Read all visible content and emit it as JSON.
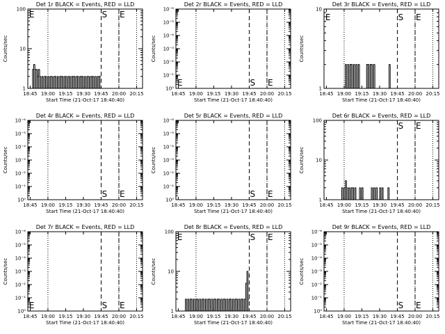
{
  "chart_data": [
    {
      "type": "line",
      "title": "Det 1r BLACK = Events, RED = LLD",
      "xlabel": "Start Time (21-Oct-17 18:40:40)",
      "ylabel": "Counts/sec",
      "ylim_label": [
        "1",
        "10",
        "100"
      ],
      "yscale": "log",
      "ylim": [
        1,
        100
      ],
      "xticks": [
        "18:45",
        "19:00",
        "19:15",
        "19:30",
        "19:45",
        "20:00",
        "20:15"
      ],
      "xlim_min": [
        -2,
        95
      ],
      "xticks_min": [
        0,
        15,
        30,
        45,
        60,
        75,
        90
      ],
      "dotted_min": [
        15,
        75,
        90
      ],
      "dashed_min": [
        60,
        75
      ],
      "markers": [
        {
          "text": "E",
          "x_min": -1.5,
          "y": 75
        },
        {
          "text": "S",
          "x_min": 60,
          "y": 75
        },
        {
          "text": "E",
          "x_min": 75,
          "y": 75
        }
      ],
      "series": [
        {
          "x_min": [
            2,
            3,
            4,
            5,
            6,
            7,
            8,
            9,
            10,
            11,
            12,
            13,
            14,
            15,
            16,
            17,
            18,
            19,
            20,
            21,
            22,
            23,
            24,
            25,
            26,
            27,
            28,
            29,
            30,
            31,
            32,
            33,
            34,
            35,
            36,
            37,
            38,
            39,
            40,
            41,
            42,
            43,
            44,
            45,
            46,
            47,
            48,
            49,
            50,
            51,
            52,
            53,
            54,
            55,
            56,
            57,
            58,
            59
          ],
          "values": [
            3,
            4,
            3,
            3,
            2,
            3,
            2,
            1,
            2,
            1,
            2,
            2,
            1,
            2,
            1,
            2,
            2,
            1,
            2,
            2,
            1,
            2,
            1,
            2,
            2,
            2,
            1,
            2,
            2,
            1,
            2,
            2,
            1,
            2,
            2,
            2,
            1,
            2,
            2,
            1,
            2,
            2,
            2,
            1,
            2,
            1,
            2,
            2,
            1,
            2,
            2,
            2,
            1,
            2,
            1,
            2,
            2,
            2
          ]
        }
      ]
    },
    {
      "type": "line",
      "title": "Det 2r BLACK = Events, RED = LLD",
      "xlabel": "Start Time (21-Oct-17 18:40:40)",
      "ylabel": "Counts/sec",
      "ylim_label": [
        "10⁰",
        "10⁻¹",
        "10⁻²",
        "10⁻³",
        "10⁻⁴",
        "10⁻⁵",
        "10⁻⁶"
      ],
      "yscale": "log",
      "ylim": [
        1,
        1000000
      ],
      "xticks": [
        "18:45",
        "19:00",
        "19:15",
        "19:30",
        "19:45",
        "20:00",
        "20:15"
      ],
      "xlim_min": [
        -2,
        95
      ],
      "xticks_min": [
        0,
        15,
        30,
        45,
        60,
        75,
        90
      ],
      "dotted_min": [
        15,
        75,
        90
      ],
      "dashed_min": [
        60,
        75
      ],
      "markers": [
        {
          "text": "E",
          "x_min": -1.5,
          "y": 3
        },
        {
          "text": "S",
          "x_min": 60,
          "y": 3
        },
        {
          "text": "E",
          "x_min": 75,
          "y": 3
        }
      ],
      "series": []
    },
    {
      "type": "line",
      "title": "Det 3r BLACK = Events, RED = LLD",
      "xlabel": "Start Time (21-Oct-17 18:40:40)",
      "ylabel": "Counts/sec",
      "ylim_label": [
        "1",
        "10"
      ],
      "yscale": "log",
      "ylim": [
        1,
        10
      ],
      "xticks": [
        "18:45",
        "19:00",
        "19:15",
        "19:30",
        "19:45",
        "20:00",
        "20:15"
      ],
      "xlim_min": [
        -2,
        95
      ],
      "xticks_min": [
        0,
        15,
        30,
        45,
        60,
        75,
        90
      ],
      "dotted_min": [
        15,
        75,
        90
      ],
      "dashed_min": [
        60,
        75
      ],
      "markers": [
        {
          "text": "E",
          "x_min": -1.5,
          "y": 8
        },
        {
          "text": "S",
          "x_min": 60,
          "y": 8
        },
        {
          "text": "E",
          "x_min": 75,
          "y": 8
        }
      ],
      "series": [
        {
          "x_min": [
            15,
            16,
            17,
            18,
            19,
            20,
            21,
            22,
            23,
            24,
            25,
            26,
            27,
            28,
            33,
            34,
            35,
            36,
            37,
            38,
            39,
            40,
            41,
            52,
            53,
            54
          ],
          "values": [
            1,
            2,
            1,
            2,
            1,
            2,
            2,
            1,
            2,
            1,
            2,
            1,
            2,
            1,
            1,
            2,
            2,
            1,
            2,
            2,
            1,
            2,
            1,
            1,
            2,
            1
          ]
        }
      ]
    },
    {
      "type": "line",
      "title": "Det 4r BLACK = Events, RED = LLD",
      "xlabel": "Start Time (21-Oct-17 18:40:40)",
      "ylabel": "Counts/sec",
      "ylim_label": [
        "10⁰",
        "10⁻¹",
        "10⁻²",
        "10⁻³",
        "10⁻⁴",
        "10⁻⁵",
        "10⁻⁶"
      ],
      "yscale": "log",
      "ylim": [
        1,
        1000000
      ],
      "xticks": [
        "18:45",
        "19:00",
        "19:15",
        "19:30",
        "19:45",
        "20:00",
        "20:15"
      ],
      "xlim_min": [
        -2,
        95
      ],
      "xticks_min": [
        0,
        15,
        30,
        45,
        60,
        75,
        90
      ],
      "dotted_min": [
        15,
        75,
        90
      ],
      "dashed_min": [
        60,
        75
      ],
      "markers": [
        {
          "text": "S",
          "x_min": 60,
          "y": 3
        },
        {
          "text": "E",
          "x_min": 75,
          "y": 3
        }
      ],
      "series": []
    },
    {
      "type": "line",
      "title": "Det 5r BLACK = Events, RED = LLD",
      "xlabel": "Start Time (21-Oct-17 18:40:40)",
      "ylabel": "Counts/sec",
      "ylim_label": [
        "10⁰",
        "10⁻¹",
        "10⁻²",
        "10⁻³",
        "10⁻⁴",
        "10⁻⁵",
        "10⁻⁶"
      ],
      "yscale": "log",
      "ylim": [
        1,
        1000000
      ],
      "xticks": [
        "18:45",
        "19:00",
        "19:15",
        "19:30",
        "19:45",
        "20:00",
        "20:15"
      ],
      "xlim_min": [
        -2,
        95
      ],
      "xticks_min": [
        0,
        15,
        30,
        45,
        60,
        75,
        90
      ],
      "dotted_min": [
        15,
        75,
        90
      ],
      "dashed_min": [
        60,
        75
      ],
      "markers": [
        {
          "text": "S",
          "x_min": 60,
          "y": 3
        },
        {
          "text": "E",
          "x_min": 75,
          "y": 3
        }
      ],
      "series": []
    },
    {
      "type": "line",
      "title": "Det 6r BLACK = Events, RED = LLD",
      "xlabel": "Start Time (21-Oct-17 18:40:40)",
      "ylabel": "Counts/sec",
      "ylim_label": [
        "1",
        "10",
        "100"
      ],
      "yscale": "log",
      "ylim": [
        1,
        100
      ],
      "xticks": [
        "18:45",
        "19:00",
        "19:15",
        "19:30",
        "19:45",
        "20:00",
        "20:15"
      ],
      "xlim_min": [
        -2,
        95
      ],
      "xticks_min": [
        0,
        15,
        30,
        45,
        60,
        75,
        90
      ],
      "dotted_min": [
        15,
        75,
        90
      ],
      "dashed_min": [
        60,
        75
      ],
      "markers": [
        {
          "text": "S",
          "x_min": 60,
          "y": 75
        },
        {
          "text": "E",
          "x_min": 75,
          "y": 75
        }
      ],
      "series": [
        {
          "x_min": [
            12,
            13,
            14,
            15,
            16,
            17,
            18,
            19,
            20,
            21,
            22,
            23,
            24,
            25,
            26,
            27,
            28,
            29,
            30,
            31,
            32,
            33,
            34,
            35,
            36,
            37,
            38,
            39,
            40,
            41,
            42,
            43,
            44,
            45,
            46,
            47,
            48,
            49,
            50,
            51,
            52,
            53,
            54
          ],
          "values": [
            1,
            2,
            1,
            2,
            3,
            2,
            1,
            2,
            1,
            2,
            2,
            1,
            2,
            1,
            1,
            1,
            2,
            1,
            2,
            1,
            1,
            1,
            1,
            1,
            1,
            1,
            2,
            1,
            2,
            1,
            2,
            1,
            1,
            2,
            1,
            2,
            1,
            1,
            1,
            1,
            2,
            1,
            1
          ]
        }
      ]
    },
    {
      "type": "line",
      "title": "Det 7r BLACK = Events, RED = LLD",
      "xlabel": "Start Time (21-Oct-17 18:40:40)",
      "ylabel": "Counts/sec",
      "ylim_label": [
        "10⁰",
        "10⁻¹",
        "10⁻²",
        "10⁻³",
        "10⁻⁴",
        "10⁻⁵",
        "10⁻⁶"
      ],
      "yscale": "log",
      "ylim": [
        1,
        1000000
      ],
      "xticks": [
        "18:45",
        "19:00",
        "19:15",
        "19:30",
        "19:45",
        "20:00",
        "20:15"
      ],
      "xlim_min": [
        -2,
        95
      ],
      "xticks_min": [
        0,
        15,
        30,
        45,
        60,
        75,
        90
      ],
      "dotted_min": [
        15,
        75,
        90
      ],
      "dashed_min": [
        60,
        75
      ],
      "markers": [
        {
          "text": "E",
          "x_min": -1.5,
          "y": 3
        },
        {
          "text": "S",
          "x_min": 60,
          "y": 3
        },
        {
          "text": "E",
          "x_min": 75,
          "y": 3
        }
      ],
      "series": []
    },
    {
      "type": "line",
      "title": "Det 8r BLACK = Events, RED = LLD",
      "xlabel": "Start Time (21-Oct-17 18:40:40)",
      "ylabel": "Counts/sec",
      "ylim_label": [
        "1",
        "10",
        "100"
      ],
      "yscale": "log",
      "ylim": [
        1,
        100
      ],
      "xticks": [
        "18:45",
        "19:00",
        "19:15",
        "19:30",
        "19:45",
        "20:00",
        "20:15"
      ],
      "xlim_min": [
        -2,
        95
      ],
      "xticks_min": [
        0,
        15,
        30,
        45,
        60,
        75,
        90
      ],
      "dotted_min": [
        15,
        75,
        90
      ],
      "dashed_min": [
        60,
        75
      ],
      "markers": [
        {
          "text": "E",
          "x_min": -1.5,
          "y": 75
        },
        {
          "text": "S",
          "x_min": 60,
          "y": 75
        },
        {
          "text": "E",
          "x_min": 75,
          "y": 75
        }
      ],
      "series": [
        {
          "x_min": [
            6,
            7,
            8,
            9,
            10,
            11,
            12,
            13,
            14,
            15,
            16,
            17,
            18,
            19,
            20,
            21,
            22,
            23,
            24,
            25,
            26,
            27,
            28,
            29,
            30,
            31,
            32,
            33,
            34,
            35,
            36,
            37,
            38,
            39,
            40,
            41,
            42,
            43,
            44,
            45,
            46,
            47,
            48,
            49,
            50,
            51,
            52,
            53,
            54,
            55,
            56,
            57,
            58,
            59
          ],
          "values": [
            2,
            1,
            2,
            1,
            2,
            2,
            1,
            2,
            1,
            2,
            2,
            1,
            2,
            1,
            2,
            2,
            1,
            2,
            1,
            2,
            2,
            1,
            2,
            1,
            2,
            2,
            1,
            2,
            2,
            1,
            2,
            1,
            2,
            2,
            1,
            2,
            1,
            2,
            2,
            1,
            2,
            1,
            2,
            2,
            1,
            2,
            1,
            2,
            2,
            1,
            2,
            5,
            10,
            2
          ]
        }
      ]
    },
    {
      "type": "line",
      "title": "Det 9r BLACK = Events, RED = LLD",
      "xlabel": "Start Time (21-Oct-17 18:40:40)",
      "ylabel": "Counts/sec",
      "ylim_label": [
        "10⁰",
        "10⁻¹",
        "10⁻²",
        "10⁻³",
        "10⁻⁴",
        "10⁻⁵",
        "10⁻⁶"
      ],
      "yscale": "log",
      "ylim": [
        1,
        1000000
      ],
      "xticks": [
        "18:45",
        "19:00",
        "19:15",
        "19:30",
        "19:45",
        "20:00",
        "20:15"
      ],
      "xlim_min": [
        -2,
        95
      ],
      "xticks_min": [
        0,
        15,
        30,
        45,
        60,
        75,
        90
      ],
      "dotted_min": [
        15,
        75,
        90
      ],
      "dashed_min": [
        60,
        75
      ],
      "markers": [
        {
          "text": "S",
          "x_min": 60,
          "y": 3
        },
        {
          "text": "E",
          "x_min": 75,
          "y": 3
        }
      ],
      "series": []
    }
  ]
}
